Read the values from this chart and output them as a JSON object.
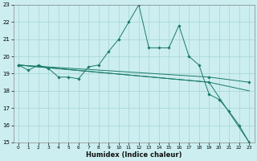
{
  "title": "",
  "xlabel": "Humidex (Indice chaleur)",
  "bg_color": "#cceef0",
  "grid_color": "#aad8da",
  "line_color": "#1a7a6a",
  "xlim": [
    -0.5,
    23.5
  ],
  "ylim": [
    15,
    23
  ],
  "xticks": [
    0,
    1,
    2,
    3,
    4,
    5,
    6,
    7,
    8,
    9,
    10,
    11,
    12,
    13,
    14,
    15,
    16,
    17,
    18,
    19,
    20,
    21,
    22,
    23
  ],
  "yticks": [
    15,
    16,
    17,
    18,
    19,
    20,
    21,
    22,
    23
  ],
  "series": [
    {
      "x": [
        0,
        1,
        2,
        3,
        4,
        5,
        6,
        7,
        8,
        9,
        10,
        11,
        12,
        13,
        14,
        15,
        16,
        17,
        18,
        19,
        20,
        21,
        22,
        23
      ],
      "y": [
        19.5,
        19.2,
        19.5,
        19.3,
        18.8,
        18.8,
        18.7,
        19.4,
        19.5,
        20.3,
        21.0,
        22.0,
        23.0,
        20.5,
        20.5,
        20.5,
        21.8,
        20.0,
        19.5,
        17.8,
        17.5,
        16.8,
        16.0,
        15.0
      ],
      "has_markers": true
    },
    {
      "x": [
        0,
        19,
        23
      ],
      "y": [
        19.5,
        18.5,
        15.0
      ],
      "has_markers": true
    },
    {
      "x": [
        0,
        19,
        23
      ],
      "y": [
        19.5,
        18.8,
        18.5
      ],
      "has_markers": true
    },
    {
      "x": [
        0,
        19,
        23
      ],
      "y": [
        19.5,
        18.5,
        18.0
      ],
      "has_markers": false
    }
  ]
}
